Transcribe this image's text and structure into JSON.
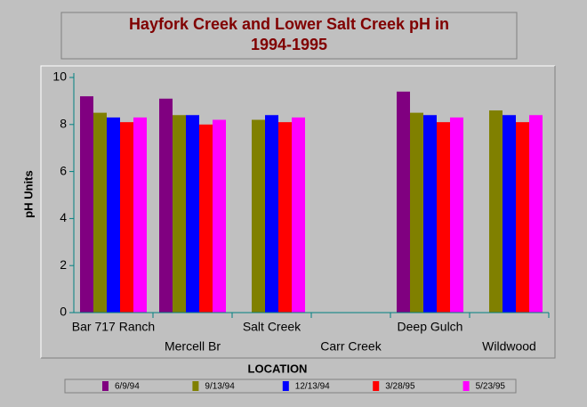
{
  "chart_data": {
    "type": "bar",
    "title": [
      "Hayfork Creek and Lower Salt Creek pH in",
      "1994-1995"
    ],
    "x_label": "LOCATION",
    "y_label": "pH Units",
    "categories": [
      "Bar 717 Ranch",
      "Mercell Br",
      "Salt Creek",
      "Carr Creek",
      "Deep Gulch",
      "Wildwood"
    ],
    "series": [
      {
        "name": "6/9/94",
        "color": "#800080",
        "values": [
          9.2,
          9.1,
          null,
          null,
          9.4,
          null
        ]
      },
      {
        "name": "9/13/94",
        "color": "#808000",
        "values": [
          8.5,
          8.4,
          8.2,
          null,
          8.5,
          8.6
        ]
      },
      {
        "name": "12/13/94",
        "color": "#0000ff",
        "values": [
          8.3,
          8.4,
          8.4,
          null,
          8.4,
          8.4
        ]
      },
      {
        "name": "3/28/95",
        "color": "#ff0000",
        "values": [
          8.1,
          8.0,
          8.1,
          null,
          8.1,
          8.1
        ]
      },
      {
        "name": "5/23/95",
        "color": "#ff00ff",
        "values": [
          8.3,
          8.2,
          8.3,
          null,
          8.3,
          8.4
        ]
      }
    ],
    "ylim": [
      0,
      10
    ],
    "yticks": [
      0,
      2,
      4,
      6,
      8,
      10
    ],
    "grid": false,
    "legend": "bottom"
  }
}
